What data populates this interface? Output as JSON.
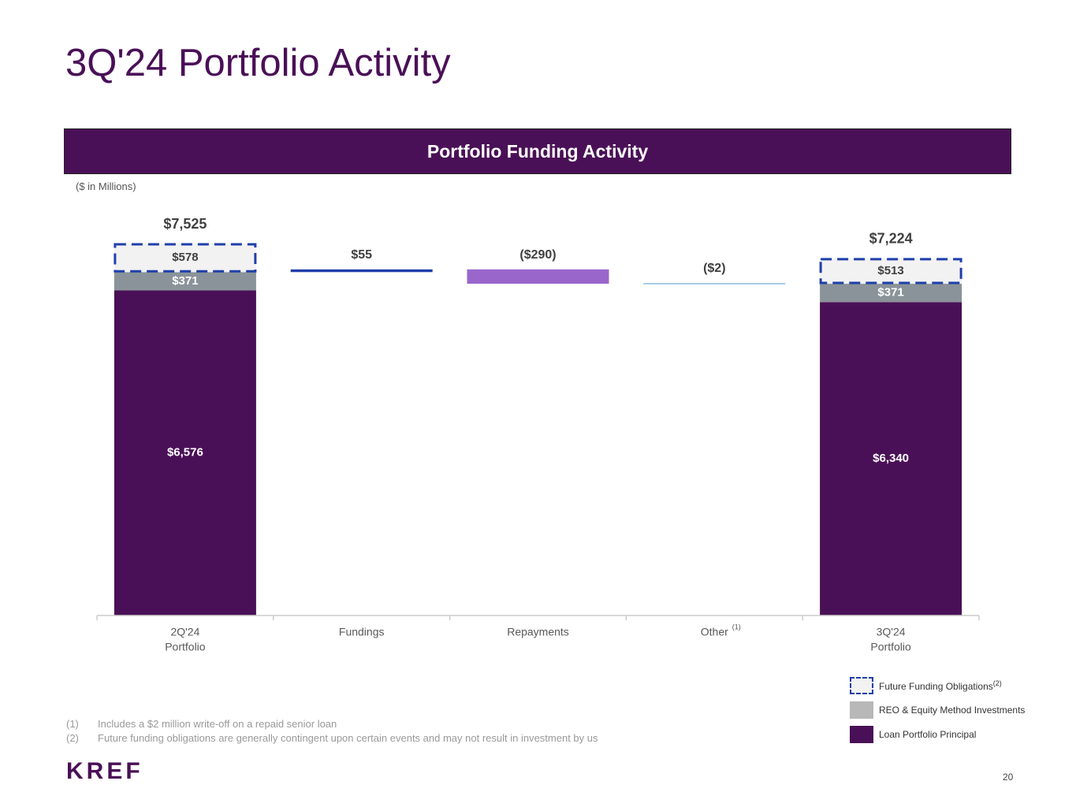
{
  "page": {
    "title": "3Q'24 Portfolio Activity",
    "banner": "Portfolio Funding Activity",
    "units": "($ in Millions)",
    "page_number": "20",
    "logo_text": "KREF"
  },
  "footnotes": [
    {
      "num": "(1)",
      "text": "Includes a $2 million write-off on a repaid senior loan"
    },
    {
      "num": "(2)",
      "text": "Future funding obligations are generally contingent upon certain events and may not result in investment by us"
    }
  ],
  "legend": [
    {
      "label": "Future Funding Obligations",
      "sup": "(2)",
      "style": "dashed",
      "color": "#f2f2f2"
    },
    {
      "label": "REO & Equity Method Investments",
      "sup": "",
      "style": "solid",
      "color": "#b8b8b8"
    },
    {
      "label": "Loan Portfolio Principal",
      "sup": "",
      "style": "solid",
      "color": "#4a1057"
    }
  ],
  "colors": {
    "loan": "#4a1057",
    "reo": "#8a9399",
    "future": "#f2f2f2",
    "dash": "#1f3faa",
    "fundings": "#1f3faa",
    "repayments": "#9966cc",
    "other": "#a9cbe8"
  },
  "chart_data": {
    "type": "bar",
    "subtype": "waterfall",
    "title": "Portfolio Funding Activity",
    "ylabel": "($ in Millions)",
    "ylim": [
      0,
      7525
    ],
    "categories": [
      {
        "label": "2Q'24\nPortfolio",
        "sup": ""
      },
      {
        "label": "Fundings",
        "sup": ""
      },
      {
        "label": "Repayments",
        "sup": ""
      },
      {
        "label": "Other",
        "sup": "(1)"
      },
      {
        "label": "3Q'24\nPortfolio",
        "sup": ""
      }
    ],
    "stacks": [
      {
        "category_index": 0,
        "total_label": "$7,525",
        "segments": [
          {
            "name": "Loan Portfolio Principal",
            "value": 6576,
            "label": "$6,576"
          },
          {
            "name": "REO & Equity Method Investments",
            "value": 371,
            "label": "$371"
          },
          {
            "name": "Future Funding Obligations",
            "value": 578,
            "label": "$578"
          }
        ]
      },
      {
        "category_index": 4,
        "total_label": "$7,224",
        "segments": [
          {
            "name": "Loan Portfolio Principal",
            "value": 6340,
            "label": "$6,340"
          },
          {
            "name": "REO & Equity Method Investments",
            "value": 371,
            "label": "$371"
          },
          {
            "name": "Future Funding Obligations",
            "value": 513,
            "label": "$513"
          }
        ]
      }
    ],
    "changes": [
      {
        "category_index": 1,
        "name": "Fundings",
        "value": 55,
        "label": "$55",
        "base": 6947
      },
      {
        "category_index": 2,
        "name": "Repayments",
        "value": -290,
        "label": "($290)",
        "base": 7002
      },
      {
        "category_index": 3,
        "name": "Other",
        "value": -2,
        "label": "($2)",
        "base": 6712
      }
    ]
  }
}
